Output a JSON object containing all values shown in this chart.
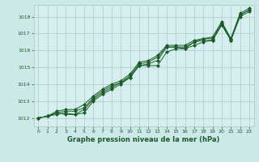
{
  "background_color": "#cce8e8",
  "plot_bg_color": "#d6eef0",
  "grid_color": "#b0d0d0",
  "line_color": "#1a5c28",
  "title": "Graphe pression niveau de la mer (hPa)",
  "xlim": [
    -0.5,
    23.5
  ],
  "ylim": [
    1011.5,
    1018.7
  ],
  "yticks": [
    1012,
    1013,
    1014,
    1015,
    1016,
    1017,
    1018
  ],
  "xticks": [
    0,
    1,
    2,
    3,
    4,
    5,
    6,
    7,
    8,
    9,
    10,
    11,
    12,
    13,
    14,
    15,
    16,
    17,
    18,
    19,
    20,
    21,
    22,
    23
  ],
  "series": [
    [
      1012.0,
      1012.1,
      1012.2,
      1012.3,
      1012.2,
      1012.3,
      1013.0,
      1013.4,
      1013.7,
      1014.0,
      1014.4,
      1015.1,
      1015.1,
      1015.1,
      1015.9,
      1016.1,
      1016.1,
      1016.3,
      1016.5,
      1016.6,
      1017.5,
      1016.6,
      1018.0,
      1018.3
    ],
    [
      1012.0,
      1012.1,
      1012.3,
      1012.2,
      1012.2,
      1012.5,
      1013.1,
      1013.5,
      1013.8,
      1014.1,
      1014.4,
      1015.1,
      1015.2,
      1015.4,
      1016.2,
      1016.2,
      1016.1,
      1016.5,
      1016.6,
      1016.6,
      1017.6,
      1016.6,
      1018.1,
      1018.4
    ],
    [
      1012.0,
      1012.1,
      1012.3,
      1012.4,
      1012.4,
      1012.6,
      1013.2,
      1013.6,
      1013.9,
      1014.1,
      1014.5,
      1015.2,
      1015.3,
      1015.6,
      1016.2,
      1016.2,
      1016.2,
      1016.5,
      1016.7,
      1016.7,
      1017.6,
      1016.7,
      1018.1,
      1018.4
    ],
    [
      1012.0,
      1012.1,
      1012.4,
      1012.5,
      1012.5,
      1012.8,
      1013.3,
      1013.7,
      1014.0,
      1014.2,
      1014.6,
      1015.3,
      1015.4,
      1015.7,
      1016.3,
      1016.3,
      1016.3,
      1016.6,
      1016.7,
      1016.8,
      1017.7,
      1016.7,
      1018.2,
      1018.5
    ]
  ]
}
